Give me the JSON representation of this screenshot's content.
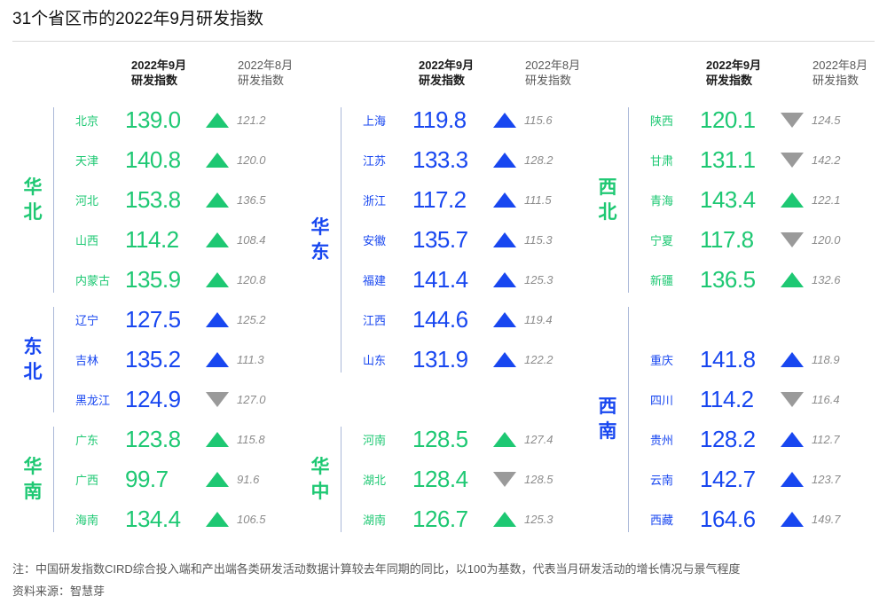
{
  "title": "31个省区市的2022年9月研发指数",
  "colors": {
    "green": "#1ec873",
    "blue": "#1847f0",
    "gray": "#9a9a9a"
  },
  "column_header": {
    "sep": [
      "2022年9月",
      "研发指数"
    ],
    "aug": [
      "2022年8月",
      "研发指数"
    ]
  },
  "chart_data": {
    "type": "table",
    "title": "31个省区市的2022年9月研发指数",
    "value_columns": [
      "2022年9月研发指数",
      "2022年8月研发指数"
    ],
    "columns": [
      {
        "groups": [
          {
            "region": "华北",
            "color": "green",
            "rows": [
              {
                "province": "北京",
                "sep": "139.0",
                "trend": "up",
                "aug": "121.2"
              },
              {
                "province": "天津",
                "sep": "140.8",
                "trend": "up",
                "aug": "120.0"
              },
              {
                "province": "河北",
                "sep": "153.8",
                "trend": "up",
                "aug": "136.5"
              },
              {
                "province": "山西",
                "sep": "114.2",
                "trend": "up",
                "aug": "108.4"
              },
              {
                "province": "内蒙古",
                "sep": "135.9",
                "trend": "up",
                "aug": "120.8"
              }
            ]
          },
          {
            "region": "东北",
            "color": "blue",
            "rows": [
              {
                "province": "辽宁",
                "sep": "127.5",
                "trend": "up",
                "aug": "125.2"
              },
              {
                "province": "吉林",
                "sep": "135.2",
                "trend": "up",
                "aug": "111.3"
              },
              {
                "province": "黑龙江",
                "sep": "124.9",
                "trend": "down",
                "aug": "127.0"
              }
            ]
          },
          {
            "region": "华南",
            "color": "green",
            "rows": [
              {
                "province": "广东",
                "sep": "123.8",
                "trend": "up",
                "aug": "115.8"
              },
              {
                "province": "广西",
                "sep": "99.7",
                "trend": "up",
                "aug": "91.6"
              },
              {
                "province": "海南",
                "sep": "134.4",
                "trend": "up",
                "aug": "106.5"
              }
            ]
          }
        ]
      },
      {
        "groups": [
          {
            "region": "华东",
            "color": "blue",
            "rows": [
              {
                "province": "上海",
                "sep": "119.8",
                "trend": "up",
                "aug": "115.6"
              },
              {
                "province": "江苏",
                "sep": "133.3",
                "trend": "up",
                "aug": "128.2"
              },
              {
                "province": "浙江",
                "sep": "117.2",
                "trend": "up",
                "aug": "111.5"
              },
              {
                "province": "安徽",
                "sep": "135.7",
                "trend": "up",
                "aug": "115.3"
              },
              {
                "province": "福建",
                "sep": "141.4",
                "trend": "up",
                "aug": "125.3"
              },
              {
                "province": "江西",
                "sep": "144.6",
                "trend": "up",
                "aug": "119.4"
              },
              {
                "province": "山东",
                "sep": "131.9",
                "trend": "up",
                "aug": "122.2"
              }
            ]
          },
          {
            "region": "华中",
            "color": "green",
            "spacer": "outside",
            "rows": [
              {
                "province": "河南",
                "sep": "128.5",
                "trend": "up",
                "aug": "127.4"
              },
              {
                "province": "湖北",
                "sep": "128.4",
                "trend": "down",
                "aug": "128.5"
              },
              {
                "province": "湖南",
                "sep": "126.7",
                "trend": "up",
                "aug": "125.3"
              }
            ]
          }
        ]
      },
      {
        "groups": [
          {
            "region": "西北",
            "color": "green",
            "rows": [
              {
                "province": "陕西",
                "sep": "120.1",
                "trend": "down",
                "aug": "124.5"
              },
              {
                "province": "甘肃",
                "sep": "131.1",
                "trend": "down",
                "aug": "142.2"
              },
              {
                "province": "青海",
                "sep": "143.4",
                "trend": "up",
                "aug": "122.1"
              },
              {
                "province": "宁夏",
                "sep": "117.8",
                "trend": "down",
                "aug": "120.0"
              },
              {
                "province": "新疆",
                "sep": "136.5",
                "trend": "up",
                "aug": "132.6"
              }
            ]
          },
          {
            "region": "西南",
            "color": "blue",
            "spacer": "inside",
            "rows": [
              {
                "province": "重庆",
                "sep": "141.8",
                "trend": "up",
                "aug": "118.9"
              },
              {
                "province": "四川",
                "sep": "114.2",
                "trend": "down",
                "aug": "116.4"
              },
              {
                "province": "贵州",
                "sep": "128.2",
                "trend": "up",
                "aug": "112.7"
              },
              {
                "province": "云南",
                "sep": "142.7",
                "trend": "up",
                "aug": "123.7"
              },
              {
                "province": "西藏",
                "sep": "164.6",
                "trend": "up",
                "aug": "149.7"
              }
            ]
          }
        ]
      }
    ]
  },
  "footer": {
    "note": "注：中国研发指数CIRD综合投入端和产出端各类研发活动数据计算较去年同期的同比，以100为基数，代表当月研发活动的增长情况与景气程度",
    "source": "资料来源：智慧芽"
  }
}
